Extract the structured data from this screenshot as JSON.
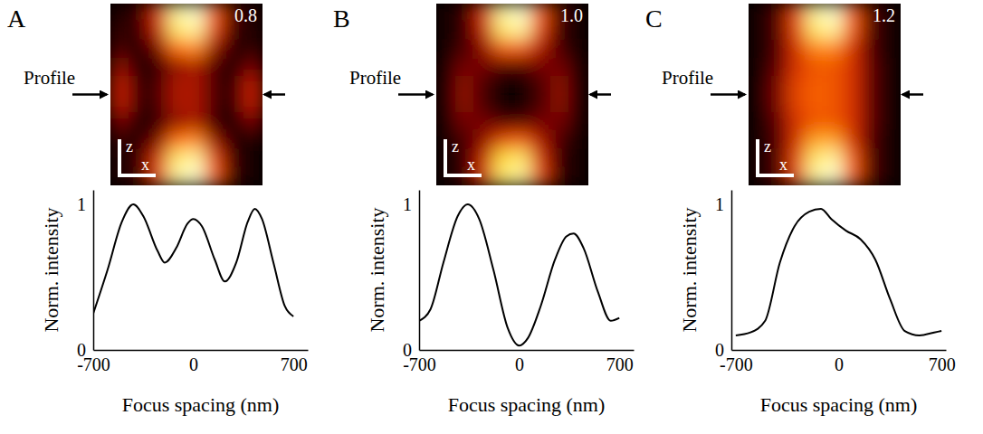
{
  "chart_data": [
    {
      "type": "heatmap",
      "panel": "A",
      "annotation": "0.8",
      "profile_label": "Profile",
      "xlabel": "x",
      "ylabel": "z",
      "cells": [
        [
          0.1,
          0.15,
          0.5,
          0.95,
          1.0,
          0.6,
          0.2,
          0.1
        ],
        [
          0.15,
          0.15,
          0.45,
          0.9,
          0.95,
          0.55,
          0.15,
          0.1
        ],
        [
          0.2,
          0.1,
          0.3,
          0.65,
          0.7,
          0.35,
          0.1,
          0.15
        ],
        [
          0.35,
          0.1,
          0.15,
          0.35,
          0.4,
          0.2,
          0.1,
          0.3
        ],
        [
          0.45,
          0.15,
          0.2,
          0.4,
          0.4,
          0.2,
          0.15,
          0.45
        ],
        [
          0.45,
          0.15,
          0.2,
          0.4,
          0.4,
          0.2,
          0.15,
          0.45
        ],
        [
          0.3,
          0.1,
          0.15,
          0.35,
          0.4,
          0.15,
          0.1,
          0.3
        ],
        [
          0.15,
          0.1,
          0.3,
          0.65,
          0.7,
          0.35,
          0.1,
          0.1
        ],
        [
          0.1,
          0.15,
          0.5,
          0.9,
          0.95,
          0.55,
          0.15,
          0.05
        ],
        [
          0.1,
          0.15,
          0.55,
          0.95,
          1.0,
          0.6,
          0.15,
          0.05
        ]
      ]
    },
    {
      "type": "line",
      "xlabel": "Focus spacing (nm)",
      "ylabel": "Norm. intensity",
      "color": "#000000",
      "xlim": [
        -700,
        800
      ],
      "ylim": [
        0,
        1.1
      ],
      "xticks": [
        -700,
        0,
        700
      ],
      "yticks": [
        0,
        1
      ],
      "x": [
        -700,
        -600,
        -500,
        -420,
        -350,
        -250,
        -200,
        -120,
        -40,
        0,
        60,
        150,
        220,
        300,
        380,
        430,
        480,
        560,
        640,
        700
      ],
      "values": [
        0.25,
        0.55,
        0.88,
        1.0,
        0.92,
        0.68,
        0.6,
        0.7,
        0.87,
        0.9,
        0.85,
        0.62,
        0.47,
        0.6,
        0.88,
        0.97,
        0.9,
        0.6,
        0.3,
        0.23
      ]
    },
    {
      "type": "heatmap",
      "panel": "B",
      "annotation": "1.0",
      "profile_label": "Profile",
      "xlabel": "x",
      "ylabel": "z",
      "cells": [
        [
          0.05,
          0.15,
          0.5,
          0.95,
          1.0,
          0.6,
          0.2,
          0.05
        ],
        [
          0.05,
          0.15,
          0.45,
          0.9,
          0.95,
          0.55,
          0.15,
          0.05
        ],
        [
          0.05,
          0.2,
          0.35,
          0.6,
          0.6,
          0.4,
          0.2,
          0.05
        ],
        [
          0.1,
          0.3,
          0.3,
          0.2,
          0.2,
          0.3,
          0.3,
          0.1
        ],
        [
          0.1,
          0.35,
          0.2,
          0.02,
          0.02,
          0.2,
          0.35,
          0.1
        ],
        [
          0.1,
          0.35,
          0.2,
          0.02,
          0.02,
          0.2,
          0.35,
          0.1
        ],
        [
          0.1,
          0.3,
          0.3,
          0.2,
          0.2,
          0.3,
          0.3,
          0.1
        ],
        [
          0.05,
          0.2,
          0.35,
          0.55,
          0.6,
          0.4,
          0.2,
          0.05
        ],
        [
          0.05,
          0.15,
          0.45,
          0.85,
          0.9,
          0.5,
          0.15,
          0.05
        ],
        [
          0.05,
          0.15,
          0.5,
          0.9,
          0.95,
          0.55,
          0.15,
          0.05
        ]
      ]
    },
    {
      "type": "line",
      "xlabel": "Focus spacing (nm)",
      "ylabel": "Norm. intensity",
      "color": "#000000",
      "xlim": [
        -700,
        800
      ],
      "ylim": [
        0,
        1.1
      ],
      "xticks": [
        -700,
        0,
        700
      ],
      "yticks": [
        0,
        1
      ],
      "x": [
        -700,
        -620,
        -530,
        -430,
        -360,
        -280,
        -180,
        -80,
        0,
        60,
        150,
        250,
        330,
        380,
        450,
        550,
        640,
        700
      ],
      "values": [
        0.2,
        0.28,
        0.6,
        0.92,
        1.0,
        0.9,
        0.55,
        0.15,
        0.03,
        0.08,
        0.3,
        0.62,
        0.78,
        0.8,
        0.7,
        0.4,
        0.2,
        0.22
      ]
    },
    {
      "type": "heatmap",
      "panel": "C",
      "annotation": "1.2",
      "profile_label": "Profile",
      "xlabel": "x",
      "ylabel": "z",
      "cells": [
        [
          0.05,
          0.2,
          0.55,
          0.95,
          1.0,
          0.6,
          0.2,
          0.05
        ],
        [
          0.05,
          0.2,
          0.55,
          0.9,
          0.95,
          0.6,
          0.2,
          0.05
        ],
        [
          0.05,
          0.2,
          0.5,
          0.7,
          0.7,
          0.5,
          0.2,
          0.05
        ],
        [
          0.05,
          0.25,
          0.5,
          0.6,
          0.6,
          0.5,
          0.25,
          0.05
        ],
        [
          0.05,
          0.3,
          0.55,
          0.62,
          0.6,
          0.5,
          0.25,
          0.05
        ],
        [
          0.05,
          0.3,
          0.55,
          0.62,
          0.6,
          0.5,
          0.25,
          0.05
        ],
        [
          0.05,
          0.25,
          0.5,
          0.6,
          0.6,
          0.5,
          0.25,
          0.05
        ],
        [
          0.05,
          0.2,
          0.5,
          0.75,
          0.75,
          0.5,
          0.2,
          0.05
        ],
        [
          0.05,
          0.2,
          0.55,
          0.9,
          0.95,
          0.6,
          0.2,
          0.05
        ],
        [
          0.05,
          0.2,
          0.55,
          0.95,
          1.0,
          0.6,
          0.2,
          0.05
        ]
      ]
    },
    {
      "type": "line",
      "xlabel": "Focus spacing (nm)",
      "ylabel": "Norm. intensity",
      "color": "#000000",
      "xlim": [
        -730,
        730
      ],
      "ylim": [
        0,
        1.1
      ],
      "xticks": [
        -700,
        0,
        700
      ],
      "yticks": [
        0,
        1
      ],
      "x": [
        -700,
        -600,
        -500,
        -400,
        -300,
        -200,
        -120,
        -50,
        50,
        150,
        250,
        350,
        450,
        550,
        650,
        700
      ],
      "values": [
        0.1,
        0.12,
        0.2,
        0.6,
        0.85,
        0.95,
        0.97,
        0.9,
        0.82,
        0.76,
        0.62,
        0.35,
        0.13,
        0.1,
        0.12,
        0.13
      ]
    }
  ]
}
